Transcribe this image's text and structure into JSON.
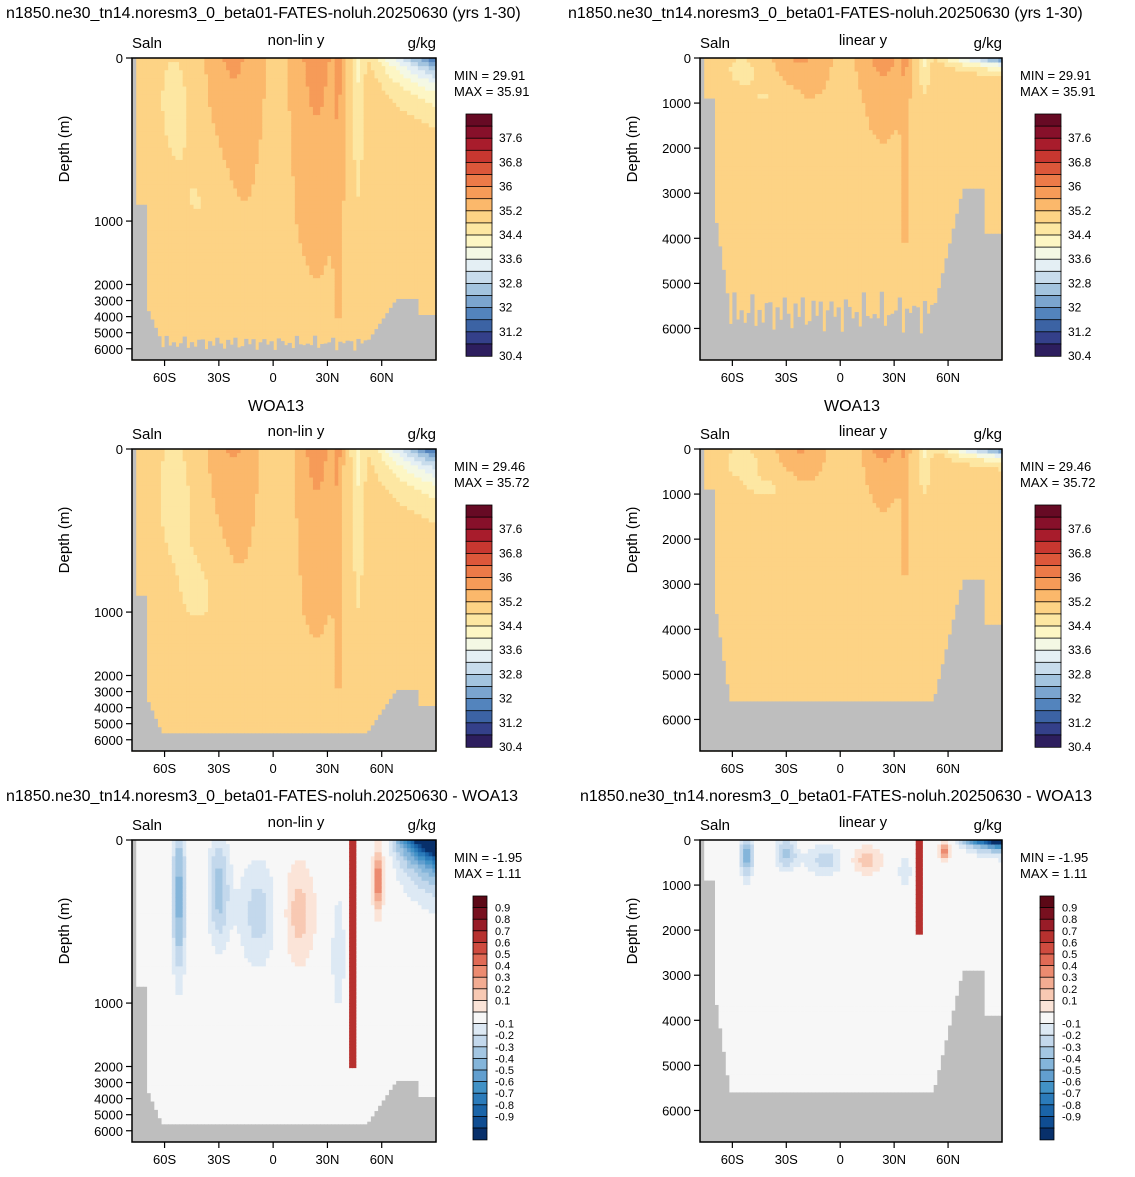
{
  "row_titles": [
    "n1850.ne30_tn14.noresm3_0_beta01-FATES-noluh.20250630 (yrs 1-30)",
    "WOA13",
    "n1850.ne30_tn14.noresm3_0_beta01-FATES-noluh.20250630 - WOA13"
  ],
  "colors": {
    "land": "#bebebe",
    "abs_palette": [
      "#2d1e5e",
      "#34408a",
      "#3c63a4",
      "#5384bd",
      "#7ba5cf",
      "#a3c4df",
      "#c8dcec",
      "#e4eff4",
      "#f4f8e4",
      "#fdf6c4",
      "#fde7a2",
      "#fdd385",
      "#fbb86b",
      "#f69b58",
      "#ec7a48",
      "#dc573a",
      "#c83730",
      "#a81c2c",
      "#87102a",
      "#670a24"
    ],
    "diff_palette": [
      "#08306b",
      "#0f4d92",
      "#1a64a8",
      "#2b7bba",
      "#4292c6",
      "#629fcf",
      "#84b5da",
      "#a3c6e2",
      "#c3d8ec",
      "#dde9f4",
      "#f7f7f7",
      "#fbe4d8",
      "#f8c9b3",
      "#f3ac92",
      "#ec8b70",
      "#e06a55",
      "#cf4b3f",
      "#b7312f",
      "#981c27",
      "#78101f",
      "#5c0816"
    ]
  },
  "chart_data": [
    {
      "type": "heatmap",
      "panel": "model-nonlin",
      "variable": "Saln",
      "scale_note": "non-lin y",
      "units": "g/kg",
      "ylabel": "Depth (m)",
      "x_ticks": [
        "60S",
        "30S",
        "0",
        "30N",
        "60N"
      ],
      "x_tick_values": [
        -60,
        -30,
        0,
        30,
        60
      ],
      "xlim": [
        -78,
        90
      ],
      "y_ticks": [
        "0",
        "1000",
        "2000",
        "3000",
        "4000",
        "5000",
        "6000"
      ],
      "y_tick_values": [
        0,
        1000,
        2000,
        3000,
        4000,
        5000,
        6000
      ],
      "ylim": [
        0,
        6700
      ],
      "y_scale": "nonlinear",
      "min_label": "MIN =  29.91",
      "max_label": "MAX =  35.91",
      "colorbar_labels": [
        "37.6",
        "36.8",
        "36",
        "35.2",
        "34.4",
        "33.6",
        "32.8",
        "32",
        "31.2",
        "30.4"
      ],
      "colorbar_levels": 20,
      "field": "model",
      "bottom": "model"
    },
    {
      "type": "heatmap",
      "panel": "model-linear",
      "variable": "Saln",
      "scale_note": "linear y",
      "units": "g/kg",
      "ylabel": "Depth (m)",
      "x_ticks": [
        "60S",
        "30S",
        "0",
        "30N",
        "60N"
      ],
      "x_tick_values": [
        -60,
        -30,
        0,
        30,
        60
      ],
      "xlim": [
        -78,
        90
      ],
      "y_ticks": [
        "0",
        "1000",
        "2000",
        "3000",
        "4000",
        "5000",
        "6000"
      ],
      "y_tick_values": [
        0,
        1000,
        2000,
        3000,
        4000,
        5000,
        6000
      ],
      "ylim": [
        0,
        6700
      ],
      "y_scale": "linear",
      "min_label": "MIN =  29.91",
      "max_label": "MAX =  35.91",
      "colorbar_labels": [
        "37.6",
        "36.8",
        "36",
        "35.2",
        "34.4",
        "33.6",
        "32.8",
        "32",
        "31.2",
        "30.4"
      ],
      "colorbar_levels": 20,
      "field": "model",
      "bottom": "model"
    },
    {
      "type": "heatmap",
      "panel": "obs-nonlin",
      "variable": "Saln",
      "scale_note": "non-lin y",
      "units": "g/kg",
      "ylabel": "Depth (m)",
      "x_ticks": [
        "60S",
        "30S",
        "0",
        "30N",
        "60N"
      ],
      "x_tick_values": [
        -60,
        -30,
        0,
        30,
        60
      ],
      "xlim": [
        -78,
        90
      ],
      "y_ticks": [
        "0",
        "1000",
        "2000",
        "3000",
        "4000",
        "5000",
        "6000"
      ],
      "y_tick_values": [
        0,
        1000,
        2000,
        3000,
        4000,
        5000,
        6000
      ],
      "ylim": [
        0,
        6700
      ],
      "y_scale": "nonlinear",
      "min_label": "MIN =  29.46",
      "max_label": "MAX =  35.72",
      "colorbar_labels": [
        "37.6",
        "36.8",
        "36",
        "35.2",
        "34.4",
        "33.6",
        "32.8",
        "32",
        "31.2",
        "30.4"
      ],
      "colorbar_levels": 20,
      "field": "obs",
      "bottom": "obs"
    },
    {
      "type": "heatmap",
      "panel": "obs-linear",
      "variable": "Saln",
      "scale_note": "linear y",
      "units": "g/kg",
      "ylabel": "Depth (m)",
      "x_ticks": [
        "60S",
        "30S",
        "0",
        "30N",
        "60N"
      ],
      "x_tick_values": [
        -60,
        -30,
        0,
        30,
        60
      ],
      "xlim": [
        -78,
        90
      ],
      "y_ticks": [
        "0",
        "1000",
        "2000",
        "3000",
        "4000",
        "5000",
        "6000"
      ],
      "y_tick_values": [
        0,
        1000,
        2000,
        3000,
        4000,
        5000,
        6000
      ],
      "ylim": [
        0,
        6700
      ],
      "y_scale": "linear",
      "min_label": "MIN =  29.46",
      "max_label": "MAX =  35.72",
      "colorbar_labels": [
        "37.6",
        "36.8",
        "36",
        "35.2",
        "34.4",
        "33.6",
        "32.8",
        "32",
        "31.2",
        "30.4"
      ],
      "colorbar_levels": 20,
      "field": "obs",
      "bottom": "obs"
    },
    {
      "type": "heatmap",
      "panel": "diff-nonlin",
      "variable": "Saln",
      "scale_note": "non-lin y",
      "units": "g/kg",
      "ylabel": "Depth (m)",
      "x_ticks": [
        "60S",
        "30S",
        "0",
        "30N",
        "60N"
      ],
      "x_tick_values": [
        -60,
        -30,
        0,
        30,
        60
      ],
      "xlim": [
        -78,
        90
      ],
      "y_ticks": [
        "0",
        "1000",
        "2000",
        "3000",
        "4000",
        "5000",
        "6000"
      ],
      "y_tick_values": [
        0,
        1000,
        2000,
        3000,
        4000,
        5000,
        6000
      ],
      "ylim": [
        0,
        6700
      ],
      "y_scale": "nonlinear",
      "min_label": "MIN =  -1.95",
      "max_label": "MAX =   1.11",
      "colorbar_labels": [
        "0.9",
        "0.8",
        "0.7",
        "0.6",
        "0.5",
        "0.4",
        "0.3",
        "0.2",
        "0.1",
        "-0.1",
        "-0.2",
        "-0.3",
        "-0.4",
        "-0.5",
        "-0.6",
        "-0.7",
        "-0.8",
        "-0.9"
      ],
      "colorbar_levels": 21,
      "field": "diff",
      "bottom": "obs"
    },
    {
      "type": "heatmap",
      "panel": "diff-linear",
      "variable": "Saln",
      "scale_note": "linear y",
      "units": "g/kg",
      "ylabel": "Depth (m)",
      "x_ticks": [
        "60S",
        "30S",
        "0",
        "30N",
        "60N"
      ],
      "x_tick_values": [
        -60,
        -30,
        0,
        30,
        60
      ],
      "xlim": [
        -78,
        90
      ],
      "y_ticks": [
        "0",
        "1000",
        "2000",
        "3000",
        "4000",
        "5000",
        "6000"
      ],
      "y_tick_values": [
        0,
        1000,
        2000,
        3000,
        4000,
        5000,
        6000
      ],
      "ylim": [
        0,
        6700
      ],
      "y_scale": "linear",
      "min_label": "MIN =  -1.95",
      "max_label": "MAX =   1.11",
      "colorbar_labels": [
        "0.9",
        "0.8",
        "0.7",
        "0.6",
        "0.5",
        "0.4",
        "0.3",
        "0.2",
        "0.1",
        "-0.1",
        "-0.2",
        "-0.3",
        "-0.4",
        "-0.5",
        "-0.6",
        "-0.7",
        "-0.8",
        "-0.9"
      ],
      "colorbar_levels": 21,
      "field": "diff",
      "bottom": "obs"
    }
  ]
}
